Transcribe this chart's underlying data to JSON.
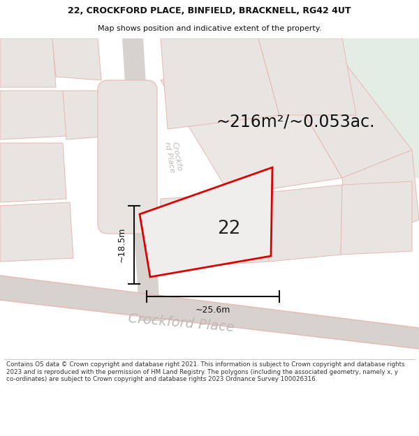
{
  "title_line1": "22, CROCKFORD PLACE, BINFIELD, BRACKNELL, RG42 4UT",
  "title_line2": "Map shows position and indicative extent of the property.",
  "area_text": "~216m²/~0.053ac.",
  "label_22": "22",
  "dim_width": "~25.6m",
  "dim_height": "~18.5m",
  "street_bottom": "Crockford Place",
  "street_vertical": "Crockfo\nrd Place",
  "footer_text": "Contains OS data © Crown copyright and database right 2021. This information is subject to Crown copyright and database rights 2023 and is reproduced with the permission of HM Land Registry. The polygons (including the associated geometry, namely x, y co-ordinates) are subject to Crown copyright and database rights 2023 Ordnance Survey 100026316.",
  "bg_main": "#f5f2ef",
  "bg_green": "#e4ede4",
  "plot_outline_color": "#dd0000",
  "title_color": "#111111",
  "footer_bg": "#ffffff",
  "block_fill": "#e8e4e1",
  "block_edge": "#e8b8b0",
  "road_fill": "#e0dbd8",
  "dim_color": "#111111",
  "street_color": "#c0b8b4"
}
